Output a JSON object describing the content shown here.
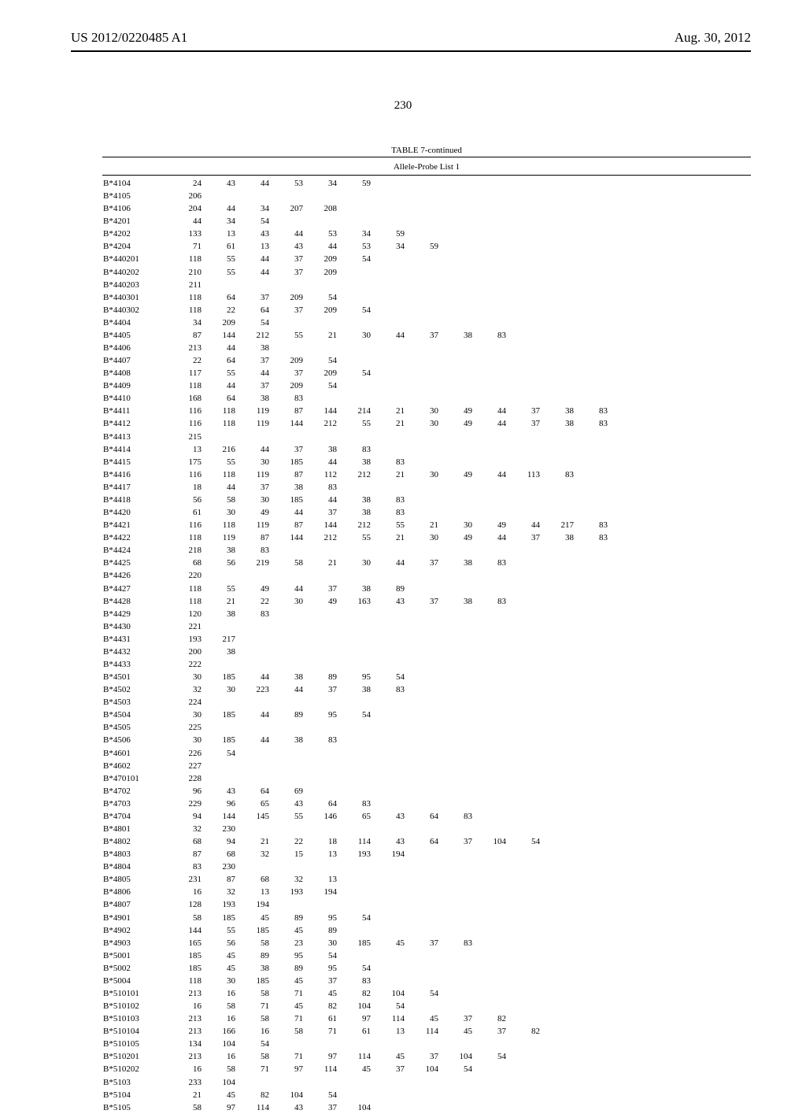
{
  "header": {
    "patent_number": "US 2012/0220485 A1",
    "pub_date": "Aug. 30, 2012"
  },
  "page_number": "230",
  "table": {
    "caption": "TABLE 7-continued",
    "subcaption": "Allele-Probe List 1",
    "label_fontsize": 11,
    "data_fontsize": 11,
    "header_fontsize": 17,
    "background_color": "#ffffff",
    "text_color": "#000000",
    "rows": [
      {
        "label": "B*4104",
        "vals": [
          24,
          43,
          44,
          53,
          34,
          59
        ]
      },
      {
        "label": "B*4105",
        "vals": [
          206
        ]
      },
      {
        "label": "B*4106",
        "vals": [
          204,
          44,
          34,
          207,
          208
        ]
      },
      {
        "label": "B*4201",
        "vals": [
          44,
          34,
          54
        ]
      },
      {
        "label": "B*4202",
        "vals": [
          133,
          13,
          43,
          44,
          53,
          34,
          59
        ]
      },
      {
        "label": "B*4204",
        "vals": [
          71,
          61,
          13,
          43,
          44,
          53,
          34,
          59
        ]
      },
      {
        "label": "B*440201",
        "vals": [
          118,
          55,
          44,
          37,
          209,
          54
        ]
      },
      {
        "label": "B*440202",
        "vals": [
          210,
          55,
          44,
          37,
          209
        ]
      },
      {
        "label": "B*440203",
        "vals": [
          211
        ]
      },
      {
        "label": "B*440301",
        "vals": [
          118,
          64,
          37,
          209,
          54
        ]
      },
      {
        "label": "B*440302",
        "vals": [
          118,
          22,
          64,
          37,
          209,
          54
        ]
      },
      {
        "label": "B*4404",
        "vals": [
          34,
          209,
          54
        ]
      },
      {
        "label": "B*4405",
        "vals": [
          87,
          144,
          212,
          55,
          21,
          30,
          44,
          37,
          38,
          83
        ]
      },
      {
        "label": "B*4406",
        "vals": [
          213,
          44,
          38
        ]
      },
      {
        "label": "B*4407",
        "vals": [
          22,
          64,
          37,
          209,
          54
        ]
      },
      {
        "label": "B*4408",
        "vals": [
          117,
          55,
          44,
          37,
          209,
          54
        ]
      },
      {
        "label": "B*4409",
        "vals": [
          118,
          44,
          37,
          209,
          54
        ]
      },
      {
        "label": "B*4410",
        "vals": [
          168,
          64,
          38,
          83
        ]
      },
      {
        "label": "B*4411",
        "vals": [
          116,
          118,
          119,
          87,
          144,
          214,
          21,
          30,
          49,
          44,
          37,
          38,
          83
        ]
      },
      {
        "label": "B*4412",
        "vals": [
          116,
          118,
          119,
          144,
          212,
          55,
          21,
          30,
          49,
          44,
          37,
          38,
          83
        ]
      },
      {
        "label": "B*4413",
        "vals": [
          215
        ]
      },
      {
        "label": "B*4414",
        "vals": [
          13,
          216,
          44,
          37,
          38,
          83
        ]
      },
      {
        "label": "B*4415",
        "vals": [
          175,
          55,
          30,
          185,
          44,
          38,
          83
        ]
      },
      {
        "label": "B*4416",
        "vals": [
          116,
          118,
          119,
          87,
          112,
          212,
          21,
          30,
          49,
          44,
          113,
          83
        ]
      },
      {
        "label": "B*4417",
        "vals": [
          18,
          44,
          37,
          38,
          83
        ]
      },
      {
        "label": "B*4418",
        "vals": [
          56,
          58,
          30,
          185,
          44,
          38,
          83
        ]
      },
      {
        "label": "B*4420",
        "vals": [
          61,
          30,
          49,
          44,
          37,
          38,
          83
        ]
      },
      {
        "label": "B*4421",
        "vals": [
          116,
          118,
          119,
          87,
          144,
          212,
          55,
          21,
          30,
          49,
          44,
          217,
          83
        ]
      },
      {
        "label": "B*4422",
        "vals": [
          118,
          119,
          87,
          144,
          212,
          55,
          21,
          30,
          49,
          44,
          37,
          38,
          83
        ]
      },
      {
        "label": "B*4424",
        "vals": [
          218,
          38,
          83
        ]
      },
      {
        "label": "B*4425",
        "vals": [
          68,
          56,
          219,
          58,
          21,
          30,
          44,
          37,
          38,
          83
        ]
      },
      {
        "label": "B*4426",
        "vals": [
          220
        ]
      },
      {
        "label": "B*4427",
        "vals": [
          118,
          55,
          49,
          44,
          37,
          38,
          89
        ]
      },
      {
        "label": "B*4428",
        "vals": [
          118,
          21,
          22,
          30,
          49,
          163,
          43,
          37,
          38,
          83
        ]
      },
      {
        "label": "B*4429",
        "vals": [
          120,
          38,
          83
        ]
      },
      {
        "label": "B*4430",
        "vals": [
          221
        ]
      },
      {
        "label": "B*4431",
        "vals": [
          193,
          217
        ]
      },
      {
        "label": "B*4432",
        "vals": [
          200,
          38
        ]
      },
      {
        "label": "B*4433",
        "vals": [
          222
        ]
      },
      {
        "label": "B*4501",
        "vals": [
          30,
          185,
          44,
          38,
          89,
          95,
          54
        ]
      },
      {
        "label": "B*4502",
        "vals": [
          32,
          30,
          223,
          44,
          37,
          38,
          83
        ]
      },
      {
        "label": "B*4503",
        "vals": [
          224
        ]
      },
      {
        "label": "B*4504",
        "vals": [
          30,
          185,
          44,
          89,
          95,
          54
        ]
      },
      {
        "label": "B*4505",
        "vals": [
          225
        ]
      },
      {
        "label": "B*4506",
        "vals": [
          30,
          185,
          44,
          38,
          83
        ]
      },
      {
        "label": "B*4601",
        "vals": [
          226,
          54
        ]
      },
      {
        "label": "B*4602",
        "vals": [
          227
        ]
      },
      {
        "label": "B*470101",
        "vals": [
          228
        ]
      },
      {
        "label": "B*4702",
        "vals": [
          96,
          43,
          64,
          69
        ]
      },
      {
        "label": "B*4703",
        "vals": [
          229,
          96,
          65,
          43,
          64,
          83
        ]
      },
      {
        "label": "B*4704",
        "vals": [
          94,
          144,
          145,
          55,
          146,
          65,
          43,
          64,
          83
        ]
      },
      {
        "label": "B*4801",
        "vals": [
          32,
          230
        ]
      },
      {
        "label": "B*4802",
        "vals": [
          68,
          94,
          21,
          22,
          18,
          114,
          43,
          64,
          37,
          104,
          54
        ]
      },
      {
        "label": "B*4803",
        "vals": [
          87,
          68,
          32,
          15,
          13,
          193,
          194
        ]
      },
      {
        "label": "B*4804",
        "vals": [
          83,
          230
        ]
      },
      {
        "label": "B*4805",
        "vals": [
          231,
          87,
          68,
          32,
          13
        ]
      },
      {
        "label": "B*4806",
        "vals": [
          16,
          32,
          13,
          193,
          194
        ]
      },
      {
        "label": "B*4807",
        "vals": [
          128,
          193,
          194
        ]
      },
      {
        "label": "B*4901",
        "vals": [
          58,
          185,
          45,
          89,
          95,
          54
        ]
      },
      {
        "label": "B*4902",
        "vals": [
          144,
          55,
          185,
          45,
          89
        ]
      },
      {
        "label": "B*4903",
        "vals": [
          165,
          56,
          58,
          23,
          30,
          185,
          45,
          37,
          83
        ]
      },
      {
        "label": "B*5001",
        "vals": [
          185,
          45,
          89,
          95,
          54
        ]
      },
      {
        "label": "B*5002",
        "vals": [
          185,
          45,
          38,
          89,
          95,
          54
        ]
      },
      {
        "label": "B*5004",
        "vals": [
          118,
          30,
          185,
          45,
          37,
          83
        ]
      },
      {
        "label": "B*510101",
        "vals": [
          213,
          16,
          58,
          71,
          45,
          82,
          104,
          54
        ]
      },
      {
        "label": "B*510102",
        "vals": [
          16,
          58,
          71,
          45,
          82,
          104,
          54
        ]
      },
      {
        "label": "B*510103",
        "vals": [
          213,
          16,
          58,
          71,
          61,
          97,
          114,
          45,
          37,
          82
        ]
      },
      {
        "label": "B*510104",
        "vals": [
          213,
          166,
          16,
          58,
          71,
          61,
          13,
          114,
          45,
          37,
          82
        ]
      },
      {
        "label": "B*510105",
        "vals": [
          134,
          104,
          54
        ]
      },
      {
        "label": "B*510201",
        "vals": [
          213,
          16,
          58,
          71,
          97,
          114,
          45,
          37,
          104,
          54
        ]
      },
      {
        "label": "B*510202",
        "vals": [
          16,
          58,
          71,
          97,
          114,
          45,
          37,
          104,
          54
        ]
      },
      {
        "label": "B*5103",
        "vals": [
          233,
          104
        ]
      },
      {
        "label": "B*5104",
        "vals": [
          21,
          45,
          82,
          104,
          54
        ]
      },
      {
        "label": "B*5105",
        "vals": [
          58,
          97,
          114,
          43,
          37,
          104
        ]
      }
    ]
  }
}
